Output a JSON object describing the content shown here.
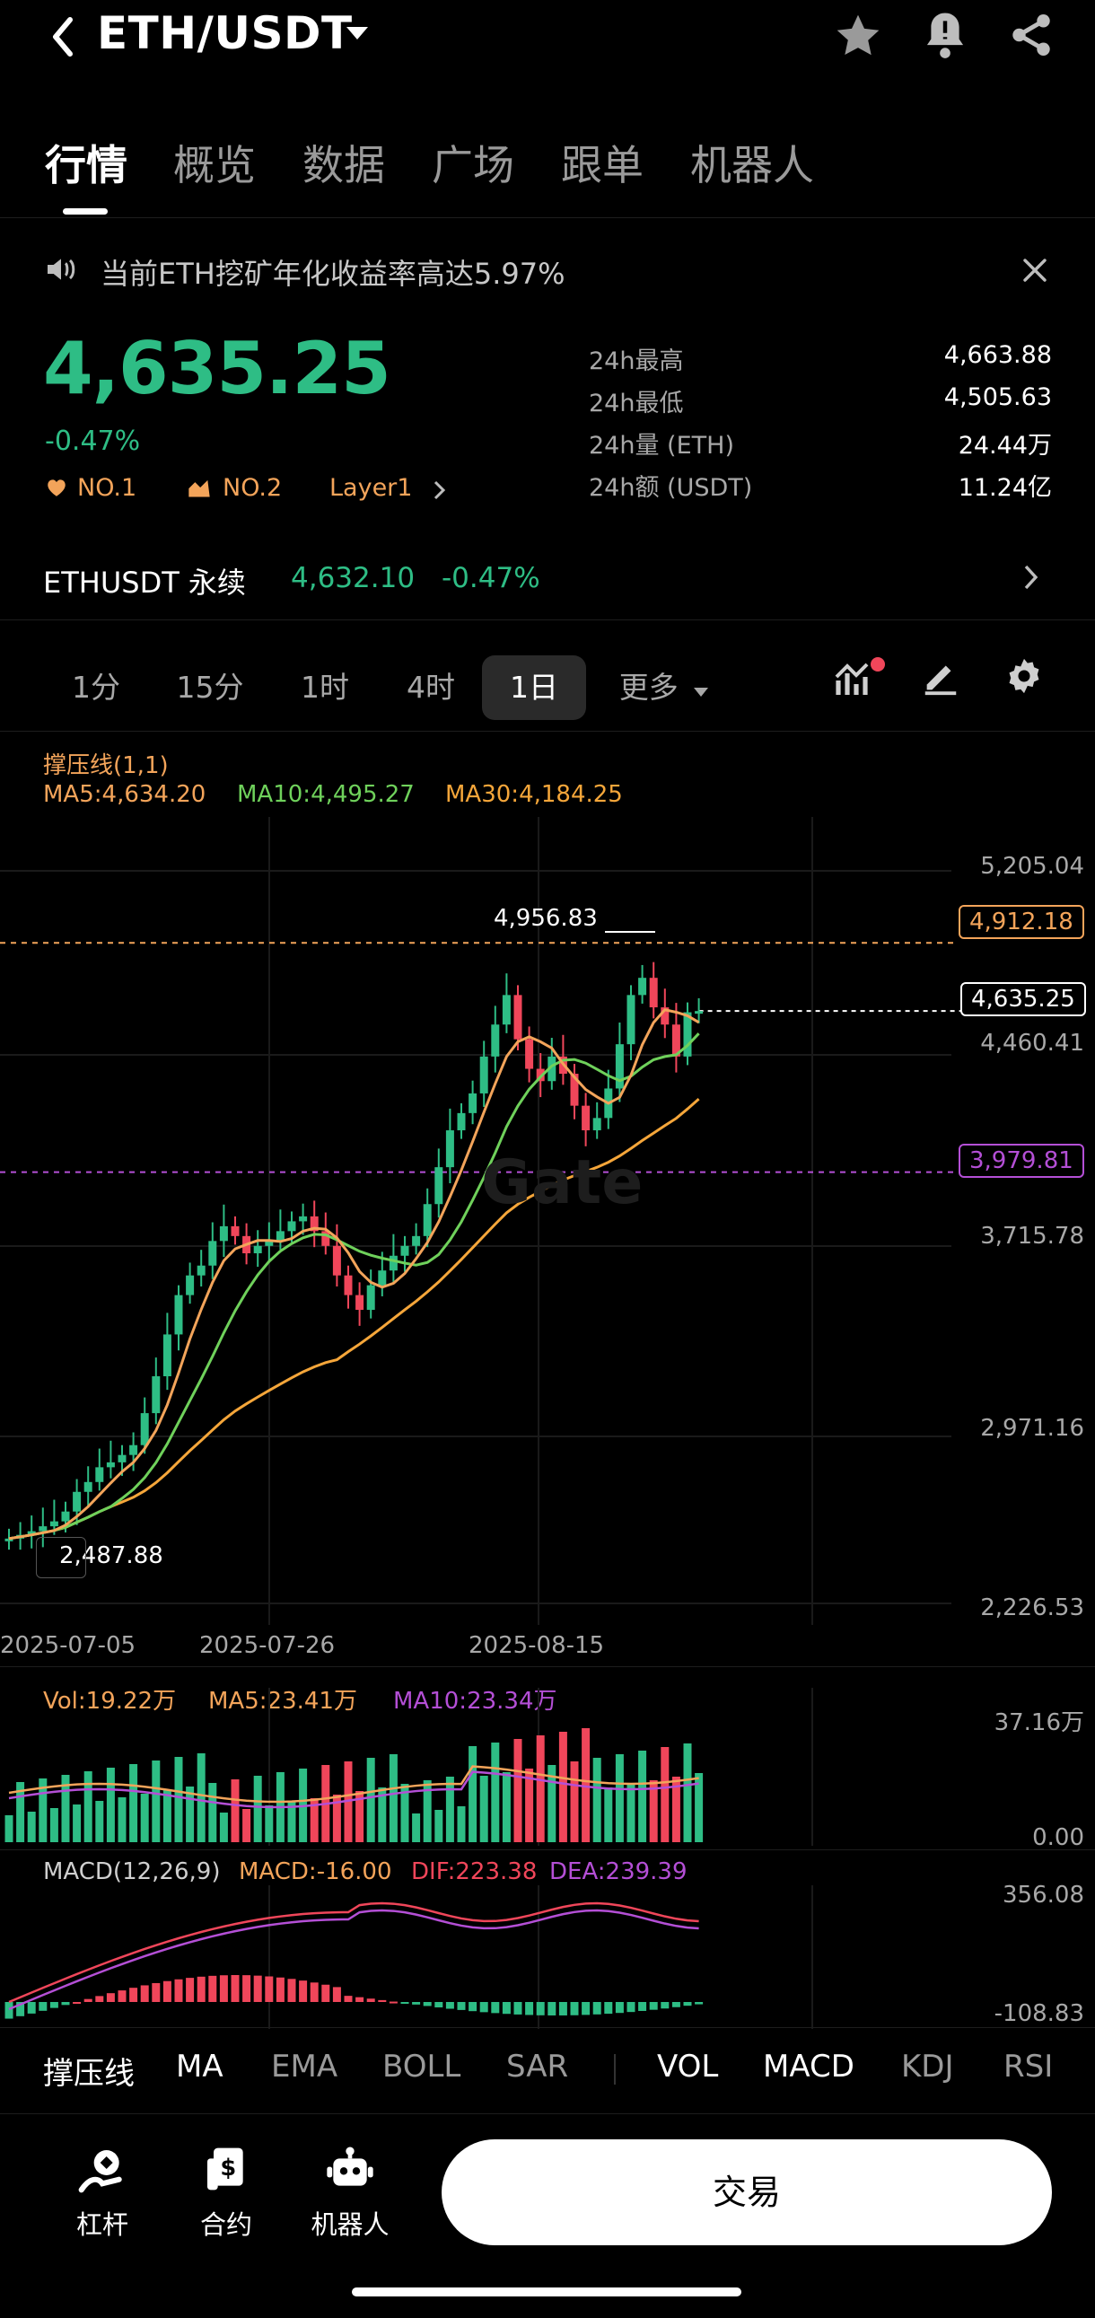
{
  "header": {
    "pair": "ETH/USDT"
  },
  "tabs": [
    "行情",
    "概览",
    "数据",
    "广场",
    "跟单",
    "机器人"
  ],
  "notice": {
    "text": "当前ETH挖矿年化收益率高达5.97%"
  },
  "ticker": {
    "last_price": "4,635.25",
    "change_pct": "-0.47%",
    "rank1": "NO.1",
    "rank2": "NO.2",
    "category": "Layer1",
    "stats": [
      {
        "label": "24h最高",
        "value": "4,663.88"
      },
      {
        "label": "24h最低",
        "value": "4,505.63"
      },
      {
        "label": "24h量 (ETH)",
        "value": "24.44万"
      },
      {
        "label": "24h额 (USDT)",
        "value": "11.24亿"
      }
    ]
  },
  "perpetual": {
    "name": "ETHUSDT 永续",
    "price": "4,632.10",
    "change": "-0.47%"
  },
  "timeframes": [
    "1分",
    "15分",
    "1时",
    "4时",
    "1日"
  ],
  "timeframe_more": "更多",
  "chart": {
    "indicator_title": "撑压线(1,1)",
    "ma5": "MA5:4,634.20",
    "ma10": "MA10:4,495.27",
    "ma30": "MA30:4,184.25",
    "y_labels": [
      "5,205.04",
      "4,460.41",
      "3,715.78",
      "2,971.16",
      "2,226.53"
    ],
    "x_labels": [
      "2025-07-05",
      "2025-07-26",
      "2025-08-15"
    ],
    "high_marker": "4,956.83",
    "low_marker": "2,487.88",
    "resistance": "4,912.18",
    "current": "4,635.25",
    "support": "3,979.81",
    "watermark": "Gate",
    "colors": {
      "up": "#2ebd85",
      "down": "#f0465a",
      "ma5": "#f3a45a",
      "ma10": "#6fd15b",
      "ma30": "#f5a63a",
      "support": "#b44fd6"
    }
  },
  "volume": {
    "vol": "Vol:19.22万",
    "ma5": "MA5:23.41万",
    "ma10": "MA10:23.34万",
    "y_top": "37.16万",
    "y_bottom": "0.00"
  },
  "macd": {
    "title": "MACD(12,26,9)",
    "macd": "MACD:-16.00",
    "dif": "DIF:223.38",
    "dea": "DEA:239.39",
    "y_top": "356.08",
    "y_bottom": "-108.83"
  },
  "indicators": [
    "撑压线",
    "MA",
    "EMA",
    "BOLL",
    "SAR",
    "VOL",
    "MACD",
    "KDJ",
    "RSI"
  ],
  "bottom_nav": [
    {
      "label": "杠杆",
      "icon": "leverage-icon"
    },
    {
      "label": "合约",
      "icon": "contract-icon"
    },
    {
      "label": "机器人",
      "icon": "robot-icon"
    }
  ],
  "trade_button": "交易"
}
